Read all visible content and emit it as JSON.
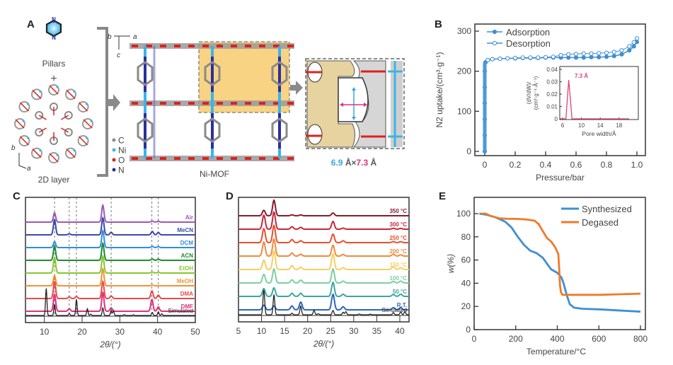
{
  "panels": {
    "A": {
      "letter": "A",
      "pillars_label": "Pillars",
      "plus": "+",
      "layer_label": "2D layer",
      "axes_top": {
        "b": "b",
        "a": "a",
        "c": "c"
      },
      "axes_layer": {
        "b": "b",
        "a": "a"
      },
      "legend": [
        {
          "symbol": "C",
          "color": "#8c8c8c"
        },
        {
          "symbol": "Ni",
          "color": "#3bb4e8"
        },
        {
          "symbol": "O",
          "color": "#e0201c"
        },
        {
          "symbol": "N",
          "color": "#2b2fa0"
        }
      ],
      "framework_label": "Ni-MOF",
      "pore_size": {
        "first": "6.9",
        "unit1": " Å",
        "times": "×",
        "second": "7.3",
        "unit2": " Å"
      },
      "colors": {
        "highlight": "#f5c55a",
        "pore_surface": "#e8d4a0",
        "first_dim": "#3ba7e0",
        "second_dim": "#e0307c"
      }
    },
    "B": {
      "letter": "B"
    },
    "C": {
      "letter": "C"
    },
    "D": {
      "letter": "D"
    },
    "E": {
      "letter": "E"
    }
  },
  "chart_data": [
    {
      "id": "B",
      "type": "scatter",
      "title": "",
      "xlabel": "Pressure/bar",
      "ylabel": "N2 uptake/(cm³·g⁻¹)",
      "xlim": [
        -0.05,
        1.05
      ],
      "ylim": [
        -10,
        310
      ],
      "xticks": [
        "0",
        "0.2",
        "0.4",
        "0.6",
        "0.8",
        "1.0"
      ],
      "yticks": [
        "0",
        "100",
        "200",
        "300"
      ],
      "legend": [
        "Adsorption",
        "Desorption"
      ],
      "legend_position": "top-left",
      "series": [
        {
          "name": "Adsorption",
          "marker": "filled-circle",
          "color": "#3f8fd2",
          "x": [
            0,
            0,
            0,
            0,
            0,
            0,
            0.005,
            0.02,
            0.05,
            0.1,
            0.15,
            0.2,
            0.25,
            0.3,
            0.35,
            0.4,
            0.45,
            0.5,
            0.55,
            0.6,
            0.65,
            0.7,
            0.75,
            0.8,
            0.85,
            0.9,
            0.95,
            0.98,
            1.0
          ],
          "y": [
            0,
            40,
            80,
            120,
            160,
            200,
            222,
            228,
            230,
            231,
            232,
            232,
            233,
            233,
            233,
            234,
            234,
            234,
            234,
            234,
            234,
            235,
            235,
            236,
            238,
            242,
            252,
            262,
            273
          ]
        },
        {
          "name": "Desorption",
          "marker": "open-circle",
          "color": "#3f8fd2",
          "x": [
            1.0,
            0.98,
            0.95,
            0.9,
            0.85,
            0.8,
            0.75,
            0.7,
            0.65,
            0.6,
            0.55,
            0.5,
            0.45,
            0.4,
            0.35,
            0.3,
            0.25,
            0.2,
            0.15,
            0.1,
            0.05,
            0.02
          ],
          "y": [
            282,
            272,
            262,
            252,
            248,
            246,
            245,
            244,
            244,
            243,
            242,
            240,
            236,
            235,
            234,
            234,
            234,
            233,
            232,
            231,
            230,
            228
          ]
        }
      ],
      "inset": {
        "type": "line",
        "xlabel": "Pore width/Å",
        "ylabel": "(dV/dW)/(cm³·g⁻¹·Å⁻¹)",
        "xlim": [
          5,
          20
        ],
        "ylim": [
          -0.002,
          0.04
        ],
        "xticks": [
          "6",
          "10",
          "14",
          "18"
        ],
        "yticks": [
          "0",
          "0.01",
          "0.02",
          "0.03",
          "0.04"
        ],
        "annotation": "7.3 Å",
        "color": "#e0407a",
        "x": [
          5.2,
          6.7,
          7.3,
          8.0,
          9.0,
          10,
          11,
          12,
          13,
          14,
          15,
          16,
          17,
          18,
          19,
          20
        ],
        "y": [
          0,
          0,
          0.0315,
          0,
          0,
          0,
          0,
          0,
          0,
          0,
          0,
          0,
          0,
          0,
          0,
          0
        ]
      }
    },
    {
      "id": "C",
      "type": "line",
      "title": "",
      "xlabel": "2θ/(°)",
      "ylabel": "",
      "xlim": [
        5,
        50
      ],
      "xticks": [
        "10",
        "20",
        "30",
        "40",
        "50"
      ],
      "reference_lines": [
        12.7,
        16.6,
        18.5,
        27.7,
        38.5,
        40.2
      ],
      "peaks_main": [
        12.7,
        25.5
      ],
      "series": [
        {
          "name": "Air",
          "color": "#9b59b6",
          "peaks": [
            [
              12.7,
              0.55
            ],
            [
              25.5,
              1.0
            ],
            [
              38.6,
              0.06
            ],
            [
              40.2,
              0.05
            ]
          ]
        },
        {
          "name": "MeCN",
          "color": "#3b4aa8",
          "peaks": [
            [
              12.7,
              0.9
            ],
            [
              16.6,
              0.06
            ],
            [
              25.5,
              1.0
            ],
            [
              27.7,
              0.15
            ],
            [
              38.6,
              0.2
            ],
            [
              40.2,
              0.14
            ]
          ]
        },
        {
          "name": "DCM",
          "color": "#2f8fe0",
          "peaks": [
            [
              12.7,
              0.35
            ],
            [
              25.5,
              1.0
            ],
            [
              38.6,
              0.07
            ],
            [
              40.2,
              0.06
            ]
          ]
        },
        {
          "name": "ACN",
          "color": "#1e8c2e",
          "peaks": [
            [
              12.7,
              0.85
            ],
            [
              25.5,
              1.0
            ],
            [
              38.6,
              0.08
            ],
            [
              40.2,
              0.07
            ]
          ]
        },
        {
          "name": "EtOH",
          "color": "#86c82e",
          "peaks": [
            [
              12.7,
              0.9
            ],
            [
              25.5,
              1.0
            ],
            [
              38.6,
              0.06
            ],
            [
              40.2,
              0.05
            ]
          ]
        },
        {
          "name": "MeOH",
          "color": "#f39234",
          "peaks": [
            [
              12.7,
              0.6
            ],
            [
              25.5,
              1.0
            ],
            [
              38.6,
              0.04
            ]
          ]
        },
        {
          "name": "DMA",
          "color": "#e84a4a",
          "peaks": [
            [
              12.7,
              1.0
            ],
            [
              16.6,
              0.1
            ],
            [
              18.5,
              0.12
            ],
            [
              25.5,
              1.0
            ],
            [
              27.7,
              0.15
            ],
            [
              38.5,
              0.45
            ],
            [
              40.2,
              0.2
            ]
          ]
        },
        {
          "name": "DMF",
          "color": "#e0307c",
          "peaks": [
            [
              12.7,
              1.0
            ],
            [
              16.6,
              0.15
            ],
            [
              25.5,
              1.1
            ],
            [
              27.7,
              0.2
            ],
            [
              38.5,
              0.7
            ],
            [
              40.2,
              0.25
            ]
          ]
        },
        {
          "name": "Simulated",
          "color": "#222222",
          "peaks": [
            [
              10.5,
              1.6
            ],
            [
              12.7,
              0.65
            ],
            [
              16.6,
              0.12
            ],
            [
              18.5,
              0.95
            ],
            [
              21.4,
              0.4
            ],
            [
              22.3,
              0.08
            ],
            [
              25.5,
              0.45
            ],
            [
              27.7,
              0.3
            ],
            [
              28.3,
              0.28
            ],
            [
              31.2,
              0.05
            ],
            [
              33.6,
              0.04
            ],
            [
              38.6,
              0.18
            ],
            [
              40.2,
              0.22
            ],
            [
              41.1,
              0.1
            ]
          ]
        }
      ]
    },
    {
      "id": "D",
      "type": "line",
      "title": "",
      "xlabel": "2θ/(°)",
      "ylabel": "",
      "xlim": [
        5,
        42
      ],
      "xticks": [
        "5",
        "10",
        "15",
        "20",
        "25",
        "30",
        "35",
        "40"
      ],
      "series": [
        {
          "name": "350 °C",
          "color": "#8b1a2e",
          "peaks": [
            [
              10.5,
              0.35
            ],
            [
              12.7,
              1.0
            ],
            [
              16.6,
              0.06
            ],
            [
              18.5,
              0.05
            ],
            [
              25.5,
              0.18
            ]
          ]
        },
        {
          "name": "300 °C",
          "color": "#c8283a",
          "peaks": [
            [
              10.5,
              0.9
            ],
            [
              12.7,
              1.1
            ],
            [
              16.6,
              0.16
            ],
            [
              18.5,
              0.12
            ],
            [
              25.5,
              0.5
            ],
            [
              27.7,
              0.07
            ],
            [
              38.6,
              0.06
            ],
            [
              40.2,
              0.05
            ]
          ]
        },
        {
          "name": "250 °C",
          "color": "#e8502e",
          "peaks": [
            [
              10.5,
              0.9
            ],
            [
              12.7,
              1.1
            ],
            [
              16.6,
              0.2
            ],
            [
              18.5,
              0.12
            ],
            [
              25.5,
              0.55
            ],
            [
              27.7,
              0.12
            ],
            [
              38.6,
              0.07
            ],
            [
              40.2,
              0.06
            ]
          ]
        },
        {
          "name": "200 °C",
          "color": "#f08a3a",
          "peaks": [
            [
              10.5,
              0.9
            ],
            [
              12.7,
              1.1
            ],
            [
              16.6,
              0.2
            ],
            [
              18.5,
              0.12
            ],
            [
              25.5,
              0.7
            ],
            [
              27.7,
              0.1
            ],
            [
              38.6,
              0.12
            ],
            [
              40.2,
              0.08
            ]
          ]
        },
        {
          "name": "150 °C",
          "color": "#f5d060",
          "peaks": [
            [
              10.5,
              0.6
            ],
            [
              12.7,
              1.2
            ],
            [
              16.6,
              0.25
            ],
            [
              18.5,
              0.14
            ],
            [
              25.5,
              1.0
            ],
            [
              27.7,
              0.12
            ],
            [
              38.6,
              0.2
            ],
            [
              40.2,
              0.12
            ]
          ]
        },
        {
          "name": "100 °C",
          "color": "#7ccfa0",
          "peaks": [
            [
              10.5,
              0.55
            ],
            [
              12.7,
              0.9
            ],
            [
              16.6,
              0.2
            ],
            [
              18.5,
              0.18
            ],
            [
              25.5,
              0.9
            ],
            [
              27.7,
              0.12
            ],
            [
              38.6,
              0.1
            ],
            [
              40.2,
              0.12
            ]
          ]
        },
        {
          "name": "50 °C",
          "color": "#3aa6a0",
          "peaks": [
            [
              10.5,
              0.5
            ],
            [
              12.7,
              0.55
            ],
            [
              16.6,
              0.2
            ],
            [
              18.5,
              0.2
            ],
            [
              25.5,
              0.9
            ],
            [
              27.7,
              0.14
            ],
            [
              38.6,
              0.12
            ],
            [
              40.2,
              0.14
            ]
          ]
        },
        {
          "name": "R.T.",
          "color": "#2a66c0",
          "peaks": [
            [
              10.5,
              0.3
            ],
            [
              12.7,
              0.25
            ],
            [
              16.6,
              0.25
            ],
            [
              18.5,
              0.5
            ],
            [
              25.5,
              1.0
            ],
            [
              27.7,
              0.2
            ],
            [
              38.6,
              0.14
            ],
            [
              40.2,
              0.14
            ]
          ]
        },
        {
          "name": "Simulated",
          "color": "#222222",
          "peaks": [
            [
              10.5,
              1.6
            ],
            [
              12.7,
              1.3
            ],
            [
              16.6,
              0.1
            ],
            [
              18.5,
              0.55
            ],
            [
              21.4,
              0.28
            ],
            [
              22.3,
              0.07
            ],
            [
              25.5,
              0.28
            ],
            [
              27.7,
              0.16
            ],
            [
              28.3,
              0.2
            ],
            [
              31.2,
              0.05
            ],
            [
              33.6,
              0.04
            ],
            [
              38.6,
              0.14
            ],
            [
              40.2,
              0.18
            ],
            [
              41.1,
              0.2
            ]
          ]
        }
      ]
    },
    {
      "id": "E",
      "type": "line",
      "title": "",
      "xlabel": "Temperature/°C",
      "ylabel": "w(%)",
      "xlim": [
        0,
        820
      ],
      "ylim": [
        0,
        114
      ],
      "xticks": [
        "0",
        "200",
        "400",
        "600",
        "800"
      ],
      "yticks": [
        "0",
        "20",
        "40",
        "60",
        "80",
        "100"
      ],
      "legend_position": "top-right",
      "series": [
        {
          "name": "Synthesized",
          "color": "#3f8fd2",
          "x": [
            25,
            60,
            100,
            150,
            180,
            210,
            240,
            270,
            300,
            330,
            350,
            370,
            400,
            420,
            430,
            445,
            460,
            480,
            520,
            600,
            700,
            800
          ],
          "y": [
            100,
            99,
            97,
            93,
            88,
            80,
            73,
            68,
            66,
            62,
            57,
            52,
            49,
            45,
            40,
            30,
            22,
            19,
            18,
            17.5,
            16.5,
            15.5
          ]
        },
        {
          "name": "Degased",
          "color": "#f07a28",
          "x": [
            35,
            55,
            80,
            120,
            160,
            200,
            250,
            290,
            310,
            330,
            350,
            370,
            390,
            405,
            410,
            413,
            418,
            425,
            440,
            500,
            600,
            700,
            800
          ],
          "y": [
            100,
            100,
            98,
            96,
            95.5,
            95.5,
            95,
            94,
            91,
            85,
            79,
            76,
            71,
            65,
            50,
            38,
            32,
            30,
            30,
            30,
            30,
            30.5,
            31
          ]
        }
      ]
    }
  ]
}
